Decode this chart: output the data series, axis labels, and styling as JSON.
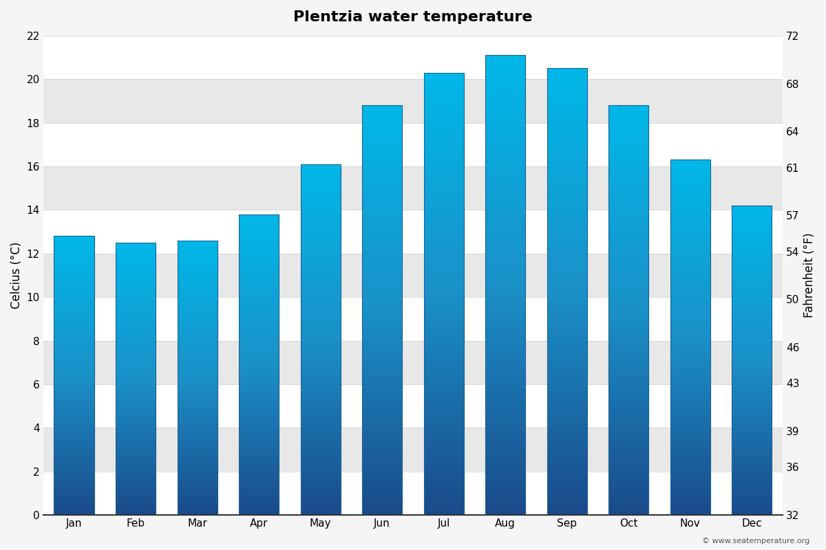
{
  "title": "Plentzia water temperature",
  "months": [
    "Jan",
    "Feb",
    "Mar",
    "Apr",
    "May",
    "Jun",
    "Jul",
    "Aug",
    "Sep",
    "Oct",
    "Nov",
    "Dec"
  ],
  "temps_c": [
    12.8,
    12.5,
    12.6,
    13.8,
    16.1,
    18.8,
    20.3,
    21.1,
    20.5,
    18.8,
    16.3,
    14.2
  ],
  "ylabel_left": "Celcius (°C)",
  "ylabel_right": "Fahrenheit (°F)",
  "ylim_c": [
    0,
    22
  ],
  "yticks_c": [
    0,
    2,
    4,
    6,
    8,
    10,
    12,
    14,
    16,
    18,
    20,
    22
  ],
  "yticks_f": [
    32,
    36,
    39,
    43,
    46,
    50,
    54,
    57,
    61,
    64,
    68,
    72
  ],
  "color_bottom": "#1a4a8a",
  "color_mid": "#1a90c8",
  "color_top": "#00b8e8",
  "background_color": "#f5f5f5",
  "plot_bg_color": "#f5f5f5",
  "bar_border_color": "#1a6090",
  "grid_band_color": "#e8e8e8",
  "copyright_text": "© www.seatemperature.org",
  "title_fontsize": 16,
  "axis_label_fontsize": 12,
  "tick_fontsize": 11
}
